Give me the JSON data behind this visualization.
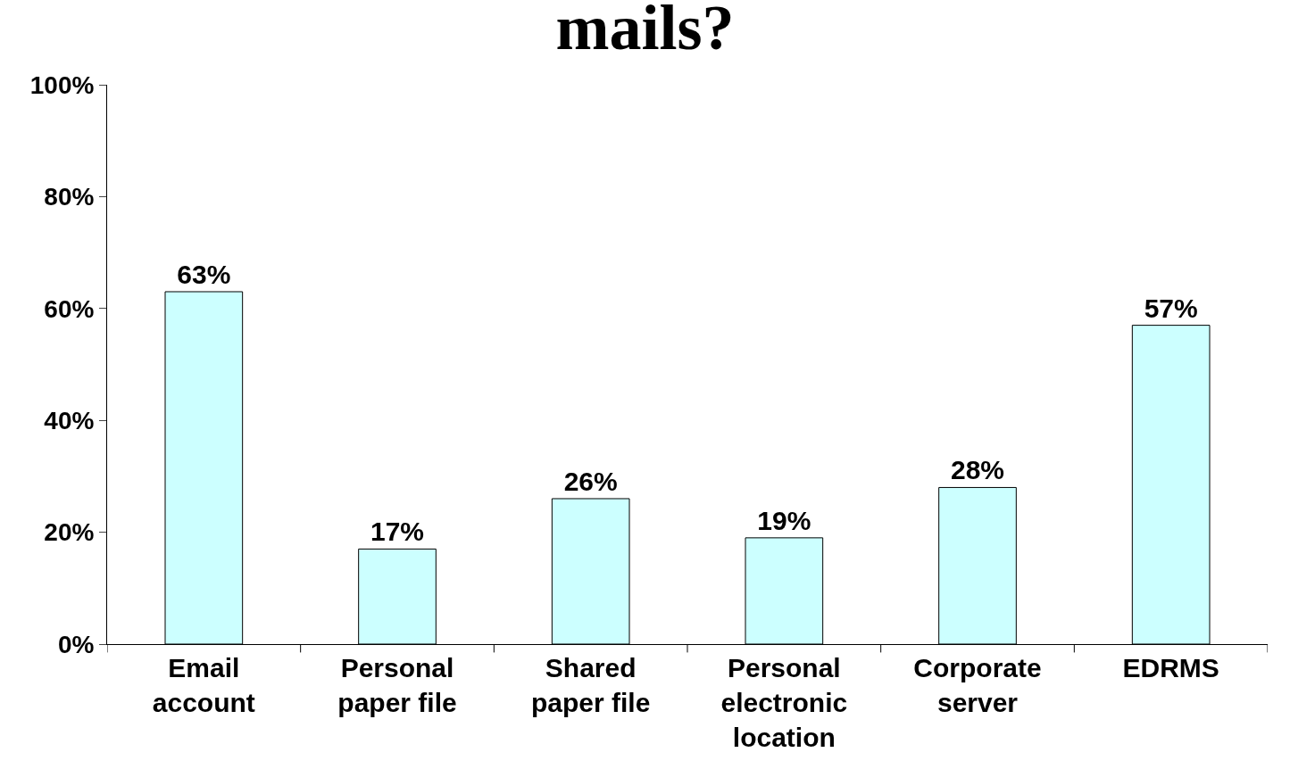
{
  "chart_data": {
    "type": "bar",
    "title": "mails?",
    "categories": [
      "Email account",
      "Personal paper file",
      "Shared paper file",
      "Personal electronic location",
      "Corporate server",
      "EDRMS"
    ],
    "values": [
      63,
      17,
      26,
      19,
      28,
      57
    ],
    "color": "#ccffff",
    "ylim": [
      0,
      100
    ],
    "yticks": [
      {
        "value": 0,
        "label": "0%"
      },
      {
        "value": 20,
        "label": "20%"
      },
      {
        "value": 40,
        "label": "40%"
      },
      {
        "value": 60,
        "label": "60%"
      },
      {
        "value": 80,
        "label": "80%"
      },
      {
        "value": 100,
        "label": "100%"
      }
    ],
    "value_labels": [
      "63%",
      "17%",
      "26%",
      "19%",
      "28%",
      "57%"
    ],
    "legend": false
  }
}
